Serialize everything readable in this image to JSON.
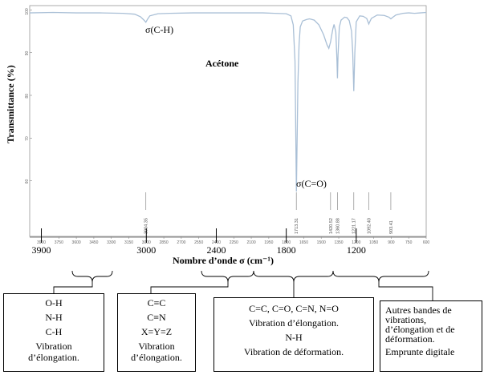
{
  "chart_data": {
    "type": "line",
    "title": "Acétone",
    "xlabel": "Nombre d’onde σ (cm⁻¹)",
    "ylabel": "Transmittance (%)",
    "xlim": [
      4000,
      600
    ],
    "ylim": [
      47,
      101
    ],
    "x_reversed": true,
    "x_ticks_small": [
      3900,
      3750,
      3600,
      3450,
      3300,
      3150,
      3000,
      2850,
      2700,
      2550,
      2400,
      2250,
      2100,
      1950,
      1800,
      1650,
      1500,
      1350,
      1200,
      1050,
      900,
      750,
      600
    ],
    "x_ticks_big": [
      "3900",
      "3000",
      "2400",
      "1800",
      "1200"
    ],
    "y_ticks": [
      100,
      90,
      80,
      70,
      60
    ],
    "series": [
      {
        "color": "#a9bfd6",
        "x": [
          4000,
          3800,
          3600,
          3400,
          3200,
          3100,
          3050,
          3020,
          3004,
          2990,
          2970,
          2900,
          2800,
          2600,
          2400,
          2200,
          2000,
          1900,
          1800,
          1760,
          1740,
          1725,
          1713,
          1700,
          1690,
          1680,
          1660,
          1640,
          1620,
          1600,
          1560,
          1520,
          1480,
          1450,
          1435,
          1425,
          1420,
          1412,
          1400,
          1390,
          1375,
          1365,
          1361,
          1356,
          1345,
          1330,
          1300,
          1280,
          1260,
          1240,
          1230,
          1221,
          1212,
          1200,
          1170,
          1140,
          1110,
          1095,
          1092,
          1088,
          1070,
          1020,
          960,
          920,
          903,
          885,
          860,
          800,
          750,
          700,
          650,
          600
        ],
        "y": [
          99.3,
          99.4,
          99.3,
          99.3,
          99.2,
          99.0,
          98.4,
          97.6,
          97.1,
          97.8,
          98.6,
          99.1,
          99.2,
          99.3,
          99.3,
          99.3,
          99.3,
          99.2,
          99.1,
          98.6,
          96.5,
          88.0,
          57.5,
          83.0,
          92.0,
          96.0,
          97.4,
          97.6,
          97.8,
          97.9,
          97.6,
          96.5,
          94.2,
          91.8,
          91.0,
          92.0,
          92.5,
          93.8,
          95.6,
          96.6,
          94.8,
          88.0,
          84.0,
          89.5,
          96.0,
          97.6,
          98.3,
          98.2,
          97.5,
          95.0,
          90.0,
          81.0,
          90.0,
          97.2,
          98.6,
          98.5,
          98.0,
          96.9,
          96.7,
          97.0,
          98.0,
          98.8,
          98.7,
          98.3,
          97.9,
          98.3,
          98.8,
          99.2,
          99.3,
          99.2,
          99.3,
          99.4
        ]
      }
    ],
    "peak_labels": [
      {
        "x": 3004.35,
        "text": "3004.35"
      },
      {
        "x": 1713.31,
        "text": "1713.31"
      },
      {
        "x": 1420.52,
        "text": "1420.52"
      },
      {
        "x": 1360.88,
        "text": "1360.88"
      },
      {
        "x": 1221.17,
        "text": "1221.17"
      },
      {
        "x": 1092.4,
        "text": "1092.40"
      },
      {
        "x": 903.41,
        "text": "903.41"
      }
    ],
    "annotations": [
      {
        "text": "σ(C-H)",
        "x": 3004
      },
      {
        "text": "σ(C=O)",
        "x": 1713
      }
    ]
  },
  "regions": [
    {
      "lines": [
        "O-H",
        "N-H",
        "C-H",
        "Vibration",
        "d’élongation."
      ]
    },
    {
      "lines": [
        "C≡C",
        "C≡N",
        "X=Y=Z",
        "Vibration",
        "d’élongation."
      ]
    },
    {
      "lines": [
        "C=C, C=O, C=N, N=O",
        "Vibration d’élongation.",
        "N-H",
        "Vibration de déformation."
      ]
    },
    {
      "lines": [
        "Autres bandes de",
        "vibrations,",
        "d’élongation et de",
        "déformation.",
        "Emprunte digitale"
      ]
    }
  ]
}
